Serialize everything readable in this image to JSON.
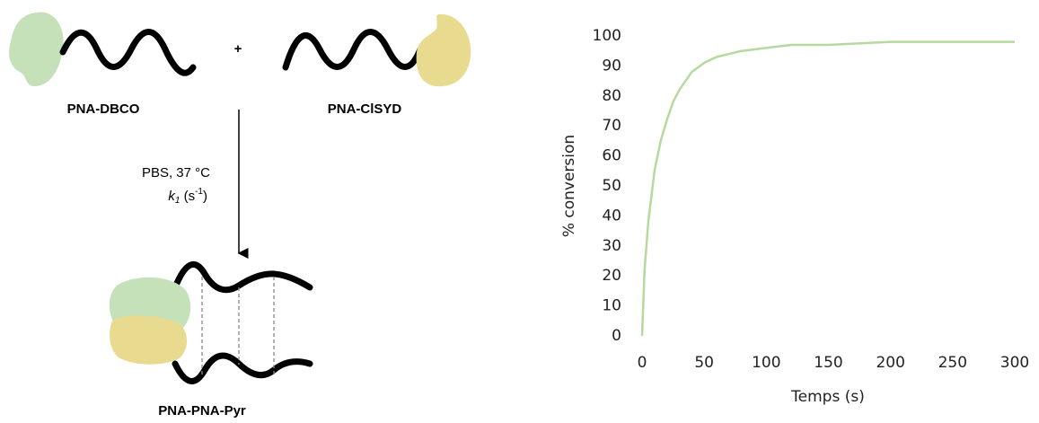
{
  "scheme": {
    "reactant_1": "PNA-DBCO",
    "plus": "+",
    "reactant_2": "PNA-ClSYD",
    "conditions": "PBS, 37 °C",
    "rate_parts": [
      "k",
      "1",
      " (s",
      "-1",
      ")"
    ],
    "product": "PNA-PNA-Pyr"
  },
  "chart_data": {
    "type": "line",
    "x_label": "Temps (s)",
    "y_label": "% conversion",
    "x": [
      0,
      2,
      5,
      10,
      15,
      20,
      25,
      30,
      40,
      50,
      60,
      70,
      80,
      100,
      120,
      150,
      200,
      250,
      300
    ],
    "series": [
      {
        "color": "#b6d99f",
        "values": [
          0,
          22,
          38,
          55,
          65,
          72,
          78,
          82,
          88,
          91,
          93,
          94,
          95,
          96,
          97,
          97,
          98,
          98,
          98
        ]
      }
    ],
    "xlim": [
      0,
      300
    ],
    "xticks": [
      0,
      50,
      100,
      150,
      200,
      250,
      300
    ],
    "ylim": [
      0,
      100
    ],
    "yticks": [
      0,
      10,
      20,
      30,
      40,
      50,
      60,
      70,
      80,
      90,
      100
    ],
    "grid": false
  }
}
